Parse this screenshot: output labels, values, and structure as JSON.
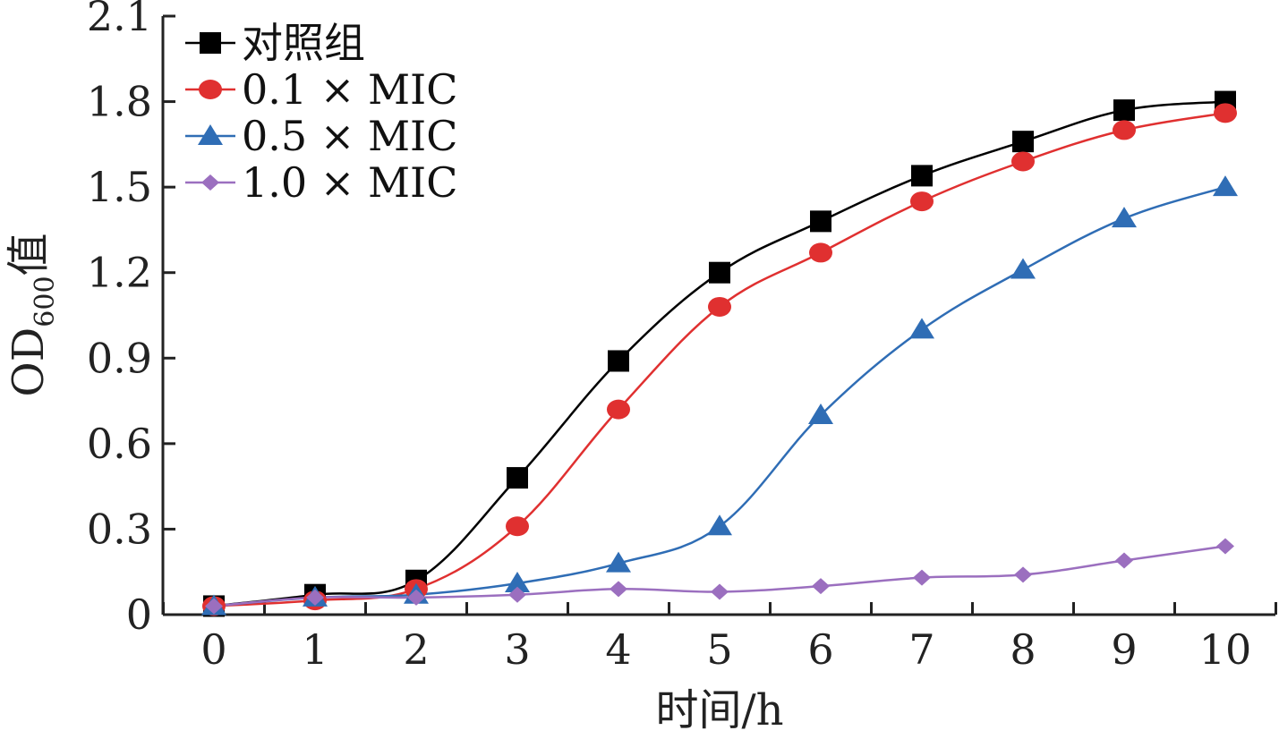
{
  "chart_data": {
    "type": "line",
    "title": "",
    "xlabel": "时间/h",
    "ylabel": {
      "main": "OD",
      "sub": "600",
      "suffix": "值"
    },
    "x": [
      0,
      1,
      2,
      3,
      4,
      5,
      6,
      7,
      8,
      9,
      10
    ],
    "xlim": [
      0,
      10
    ],
    "ylim": [
      0,
      2.1
    ],
    "x_ticks": [
      "0",
      "1",
      "2",
      "3",
      "4",
      "5",
      "6",
      "7",
      "8",
      "9",
      "10"
    ],
    "y_ticks": [
      "0",
      "0.3",
      "0.6",
      "0.9",
      "1.2",
      "1.5",
      "1.8",
      "2.1"
    ],
    "y_tick_values": [
      0,
      0.3,
      0.6,
      0.9,
      1.2,
      1.5,
      1.8,
      2.1
    ],
    "grid": false,
    "legend_position": "top-left",
    "series": [
      {
        "name": "对照组",
        "marker": "square",
        "color": "#000000",
        "values": [
          0.03,
          0.07,
          0.12,
          0.48,
          0.89,
          1.2,
          1.38,
          1.54,
          1.66,
          1.77,
          1.8
        ]
      },
      {
        "name": "0.1 × MIC",
        "marker": "circle",
        "color": "#e03030",
        "values": [
          0.03,
          0.05,
          0.09,
          0.31,
          0.72,
          1.08,
          1.27,
          1.45,
          1.59,
          1.7,
          1.76
        ]
      },
      {
        "name": "0.5 × MIC",
        "marker": "triangle",
        "color": "#2f6db5",
        "values": [
          0.03,
          0.06,
          0.07,
          0.11,
          0.18,
          0.31,
          0.7,
          1.0,
          1.21,
          1.39,
          1.5
        ]
      },
      {
        "name": "1.0 × MIC",
        "marker": "diamond",
        "color": "#9b6fbf",
        "values": [
          0.03,
          0.06,
          0.06,
          0.07,
          0.09,
          0.08,
          0.1,
          0.13,
          0.14,
          0.19,
          0.24
        ]
      }
    ]
  }
}
